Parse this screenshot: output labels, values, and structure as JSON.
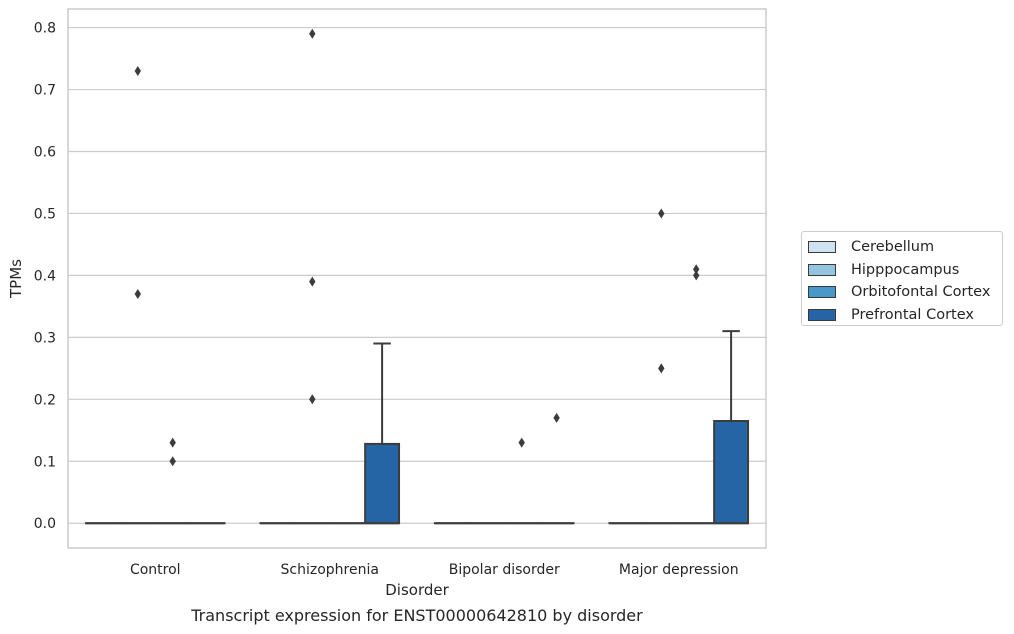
{
  "chart_data": {
    "type": "box",
    "xlabel": "Disorder",
    "ylabel": "TPMs",
    "caption": "Transcript expression for ENST00000642810 by disorder",
    "ylim": [
      -0.04,
      0.83
    ],
    "yticks": [
      "0.0",
      "0.1",
      "0.2",
      "0.3",
      "0.4",
      "0.5",
      "0.6",
      "0.7",
      "0.8"
    ],
    "ytick_values": [
      0.0,
      0.1,
      0.2,
      0.3,
      0.4,
      0.5,
      0.6,
      0.7,
      0.8
    ],
    "grid": true,
    "legend_position": "right",
    "categories": [
      "Control",
      "Schizophrenia",
      "Bipolar disorder",
      "Major depression"
    ],
    "series": [
      {
        "name": "Cerebellum",
        "color": "#d0e1f2",
        "boxes": [
          {
            "q1": 0,
            "median": 0,
            "q3": 0,
            "whisker_low": 0,
            "whisker_high": 0,
            "outliers": []
          },
          {
            "q1": 0,
            "median": 0,
            "q3": 0,
            "whisker_low": 0,
            "whisker_high": 0,
            "outliers": []
          },
          {
            "q1": 0,
            "median": 0,
            "q3": 0,
            "whisker_low": 0,
            "whisker_high": 0,
            "outliers": []
          },
          {
            "q1": 0,
            "median": 0,
            "q3": 0,
            "whisker_low": 0,
            "whisker_high": 0,
            "outliers": []
          }
        ]
      },
      {
        "name": "Hipppocampus",
        "color": "#94c4df",
        "boxes": [
          {
            "q1": 0,
            "median": 0,
            "q3": 0,
            "whisker_low": 0,
            "whisker_high": 0,
            "outliers": [
              0.73,
              0.37
            ]
          },
          {
            "q1": 0,
            "median": 0,
            "q3": 0,
            "whisker_low": 0,
            "whisker_high": 0,
            "outliers": [
              0.79,
              0.39,
              0.2
            ]
          },
          {
            "q1": 0,
            "median": 0,
            "q3": 0,
            "whisker_low": 0,
            "whisker_high": 0,
            "outliers": []
          },
          {
            "q1": 0,
            "median": 0,
            "q3": 0,
            "whisker_low": 0,
            "whisker_high": 0,
            "outliers": [
              0.5,
              0.25
            ]
          }
        ]
      },
      {
        "name": "Orbitofontal Cortex",
        "color": "#4a98c9",
        "boxes": [
          {
            "q1": 0,
            "median": 0,
            "q3": 0,
            "whisker_low": 0,
            "whisker_high": 0,
            "outliers": [
              0.13,
              0.1
            ]
          },
          {
            "q1": 0,
            "median": 0,
            "q3": 0,
            "whisker_low": 0,
            "whisker_high": 0,
            "outliers": []
          },
          {
            "q1": 0,
            "median": 0,
            "q3": 0,
            "whisker_low": 0,
            "whisker_high": 0,
            "outliers": [
              0.13
            ]
          },
          {
            "q1": 0,
            "median": 0,
            "q3": 0,
            "whisker_low": 0,
            "whisker_high": 0,
            "outliers": [
              0.41,
              0.4
            ]
          }
        ]
      },
      {
        "name": "Prefrontal Cortex",
        "color": "#2565a5",
        "boxes": [
          {
            "q1": 0,
            "median": 0,
            "q3": 0,
            "whisker_low": 0,
            "whisker_high": 0,
            "outliers": []
          },
          {
            "q1": 0,
            "median": 0,
            "q3": 0.128,
            "whisker_low": 0,
            "whisker_high": 0.29,
            "outliers": []
          },
          {
            "q1": 0,
            "median": 0,
            "q3": 0,
            "whisker_low": 0,
            "whisker_high": 0,
            "outliers": [
              0.17
            ]
          },
          {
            "q1": 0,
            "median": 0,
            "q3": 0.165,
            "whisker_low": 0,
            "whisker_high": 0.31,
            "outliers": []
          }
        ]
      }
    ]
  }
}
